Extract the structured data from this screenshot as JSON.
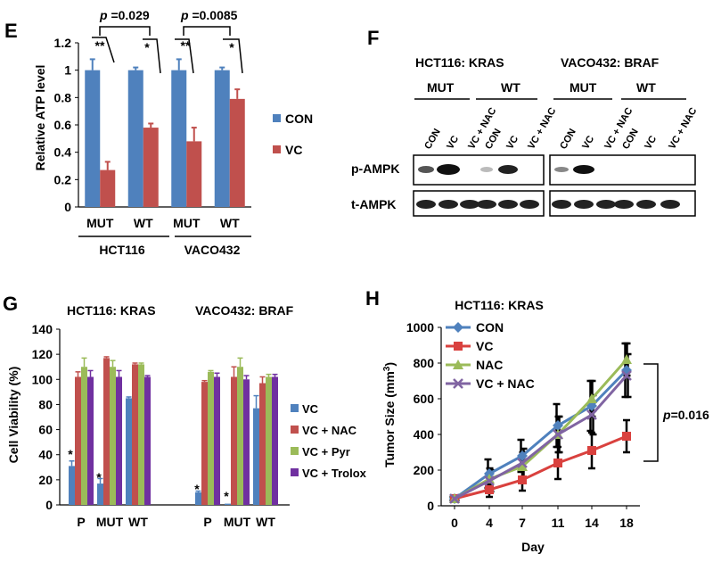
{
  "panels": {
    "E": "E",
    "F": "F",
    "G": "G",
    "H": "H"
  },
  "colors": {
    "blue": "#4f81bd",
    "red": "#c0504d",
    "green": "#9bbb59",
    "purple": "#7030a0",
    "h_blue": "#4f81bd",
    "h_red": "#d9413e",
    "h_green": "#9bbb59",
    "h_purple": "#8064a2"
  },
  "chart_data": [
    {
      "id": "E",
      "type": "bar",
      "ylabel": "Relative ATP level",
      "ylim": [
        0,
        1.2
      ],
      "yticks": [
        "0",
        "0.2",
        "0.4",
        "0.6",
        "0.8",
        "1",
        "1.2"
      ],
      "categories": [
        "MUT",
        "WT",
        "MUT",
        "WT"
      ],
      "groups": [
        "HCT116",
        "VACO432"
      ],
      "series": [
        {
          "name": "CON",
          "values": [
            1.0,
            1.0,
            1.0,
            1.0
          ],
          "errors": [
            0.08,
            0.02,
            0.08,
            0.02
          ]
        },
        {
          "name": "VC",
          "values": [
            0.27,
            0.58,
            0.48,
            0.79
          ],
          "errors": [
            0.06,
            0.03,
            0.1,
            0.07
          ]
        }
      ],
      "annotations": {
        "p1": "p =0.029",
        "p2": "p =0.0085",
        "stars": [
          "**",
          "*",
          "**",
          "*"
        ]
      }
    },
    {
      "id": "G",
      "type": "bar",
      "ylabel": "Cell Viability (%)",
      "ylim": [
        0,
        140
      ],
      "yticks": [
        "0",
        "20",
        "40",
        "60",
        "80",
        "100",
        "120",
        "140"
      ],
      "titles": [
        "HCT116: KRAS",
        "VACO432: BRAF"
      ],
      "categories": [
        "P",
        "MUT",
        "WT",
        "P",
        "MUT",
        "WT"
      ],
      "series": [
        {
          "name": "VC",
          "values": [
            31,
            17,
            85,
            10,
            1,
            77
          ],
          "errors": [
            4,
            4,
            1,
            1,
            0,
            10
          ]
        },
        {
          "name": "VC + NAC",
          "values": [
            102,
            117,
            112,
            98,
            102,
            97
          ],
          "errors": [
            4,
            1,
            1,
            1,
            8,
            5
          ]
        },
        {
          "name": "VC + Pyr",
          "values": [
            110,
            110,
            112,
            106,
            110,
            102
          ],
          "errors": [
            7,
            5,
            1,
            1,
            7,
            2
          ]
        },
        {
          "name": "VC + Trolox",
          "values": [
            102,
            102,
            102,
            102,
            100,
            102
          ],
          "errors": [
            5,
            5,
            1,
            3,
            3,
            2
          ]
        }
      ],
      "annotations": {
        "stars": [
          "*",
          "*",
          "*",
          "*"
        ]
      }
    },
    {
      "id": "H",
      "type": "line",
      "title": "HCT116: KRAS",
      "xlabel": "Day",
      "ylabel": "Tumor Size (mm³)",
      "x": [
        0,
        4,
        7,
        11,
        14,
        18
      ],
      "ylim": [
        0,
        1000
      ],
      "yticks": [
        "0",
        "200",
        "400",
        "600",
        "800",
        "1000"
      ],
      "series": [
        {
          "name": "CON",
          "values": [
            40,
            180,
            280,
            450,
            560,
            760
          ],
          "errors": [
            10,
            80,
            90,
            120,
            140,
            150
          ]
        },
        {
          "name": "VC",
          "values": [
            40,
            90,
            145,
            240,
            310,
            390
          ],
          "errors": [
            10,
            40,
            60,
            90,
            100,
            90
          ]
        },
        {
          "name": "NAC",
          "values": [
            40,
            150,
            220,
            400,
            600,
            820
          ],
          "errors": [
            10,
            60,
            80,
            100,
            100,
            90
          ]
        },
        {
          "name": "VC + NAC",
          "values": [
            40,
            140,
            240,
            400,
            510,
            730
          ],
          "errors": [
            10,
            60,
            80,
            100,
            110,
            120
          ]
        }
      ],
      "annotation": {
        "p_italic": "p",
        "p_value": "=0.016"
      }
    }
  ],
  "blot": {
    "headers": [
      "HCT116: KRAS",
      "VACO432: BRAF"
    ],
    "groups": [
      "MUT",
      "WT",
      "MUT",
      "WT"
    ],
    "lanes": [
      "CON",
      "VC",
      "VC + NAC",
      "CON",
      "VC",
      "VC + NAC",
      "CON",
      "VC",
      "VC + NAC",
      "CON",
      "VC",
      "VC + NAC"
    ],
    "rows": [
      "p-AMPK",
      "t-AMPK"
    ]
  }
}
